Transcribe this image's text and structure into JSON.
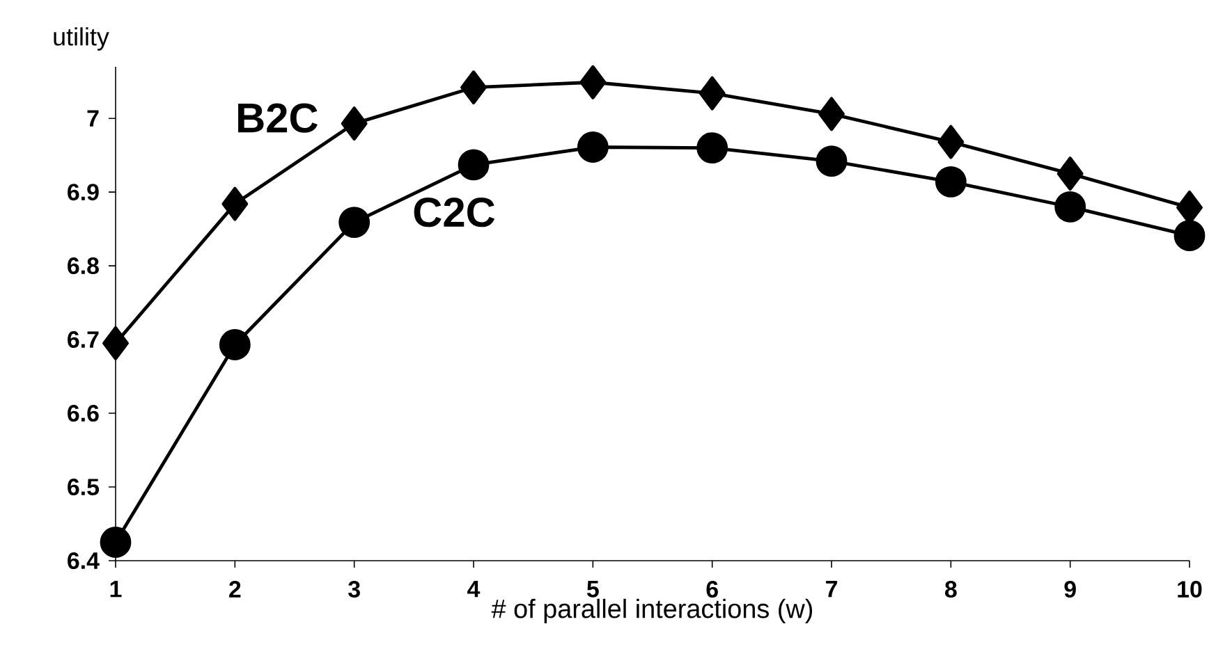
{
  "chart_data": {
    "type": "line",
    "xlabel": "# of parallel interactions (w)",
    "ylabel": "utility",
    "x": [
      1,
      2,
      3,
      4,
      5,
      6,
      7,
      8,
      9,
      10
    ],
    "series": [
      {
        "name": "B2C",
        "color": "#000000",
        "marker": "diamond",
        "values": [
          6.695,
          6.884,
          6.993,
          7.042,
          7.049,
          7.034,
          7.006,
          6.968,
          6.925,
          6.879
        ]
      },
      {
        "name": "C2C",
        "color": "#000000",
        "marker": "circle",
        "values": [
          6.425,
          6.693,
          6.859,
          6.937,
          6.961,
          6.96,
          6.942,
          6.914,
          6.88,
          6.841
        ]
      }
    ],
    "xlim": [
      1,
      10
    ],
    "ylim": [
      6.4,
      7.07
    ],
    "xticks": [
      1,
      2,
      3,
      4,
      5,
      6,
      7,
      8,
      9,
      10
    ],
    "yticks": [
      6.4,
      6.5,
      6.6,
      6.7,
      6.8,
      6.9,
      7
    ],
    "line_style": "solid",
    "grid": false
  }
}
